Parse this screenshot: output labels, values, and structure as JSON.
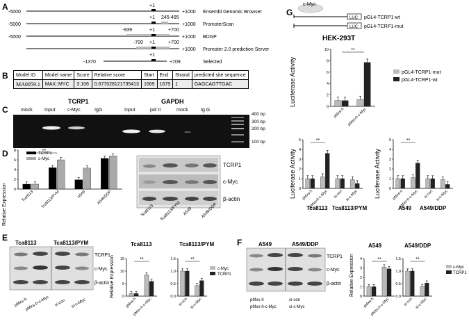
{
  "panels": {
    "A": "A",
    "B": "B",
    "C": "C",
    "D": "D",
    "E": "E",
    "F": "F",
    "G": "G"
  },
  "panelA": {
    "tracks": [
      {
        "left": "-5000",
        "right": "+1000",
        "name": "Ensembl Genomic Browser",
        "mid": [
          "+1"
        ]
      },
      {
        "left": "-5000",
        "right": "+1000",
        "name": "PromoterScan",
        "mid": [
          "+1",
          "245-495"
        ]
      },
      {
        "left": "-5000",
        "right": "+1000",
        "name": "BDGP",
        "mid": [
          "-939",
          "+1",
          "+700"
        ]
      },
      {
        "left": "",
        "right": "+1000",
        "name": "Promoter 2.0 prediction Server",
        "mid": [
          "-700",
          "+1",
          "+700"
        ]
      },
      {
        "left": "-1370",
        "right": "+709",
        "name": "Selected",
        "mid": [
          "+1"
        ]
      }
    ]
  },
  "panelB": {
    "headers": [
      "Model ID",
      "Model name",
      "Score",
      "Relative score",
      "Start",
      "End",
      "Strand",
      "predicted site sequence"
    ],
    "row": [
      "MA0059.1",
      "MAX::MYC",
      "3.106",
      "0.677028121735413",
      "1669",
      "1679",
      "1",
      "GAGCAGTTGAC"
    ]
  },
  "panelC": {
    "title_left": "TCRP1",
    "title_right": "GAPDH",
    "lanes_left": [
      "mock",
      "Input",
      "c-Myc",
      "IgG"
    ],
    "lanes_right": [
      "Input",
      "pol II",
      "mock",
      "Ig G"
    ],
    "ladder": [
      "400 bp",
      "300 bp",
      "200 bp",
      "100 bp"
    ]
  },
  "panelD": {
    "legend": [
      "TCRP1",
      "c-Myc"
    ],
    "ylabel": "Relative Expression",
    "yticks": [
      "0",
      "2",
      "4",
      "6",
      "8"
    ],
    "blot_rows": [
      "TCRP1",
      "c-Myc",
      "β-actin"
    ],
    "blot_lanes": [
      "Tca8113",
      "Tca8113/PYM",
      "A549",
      "A549/DDP"
    ],
    "sig": "**"
  },
  "panelE": {
    "headers": [
      "Tca8113",
      "Tca8113/PYM"
    ],
    "blot_rows": [
      "TCRP1",
      "c-Myc",
      "β-actin"
    ],
    "lanes": [
      "pMxs-h",
      "pMxs-h-c-Myc",
      "si-con",
      "si-c-Myc"
    ],
    "chart1_title": "Tca8113",
    "chart2_title": "Tca8113/PYM",
    "ylabel": "Relative Expression",
    "legend": [
      "c-Myc",
      "TCRP1"
    ],
    "yticks1": [
      "0",
      "5",
      "10",
      "15"
    ],
    "yticks2": [
      "0.0",
      "0.5",
      "1.0",
      "1.5"
    ],
    "sig": "**"
  },
  "panelF": {
    "headers": [
      "A549",
      "A549/DDP"
    ],
    "blot_rows": [
      "TCRP1",
      "c-Myc",
      "β-actin"
    ],
    "lanes": [
      "pMxs-h",
      "pMxs-h-c-Myc",
      "si-con",
      "si-c-Myc"
    ],
    "chart1_title": "A549",
    "chart2_title": "A549/DDP",
    "ylabel": "Relative Expression",
    "legend": [
      "c-Myc",
      "TCRP1"
    ],
    "yticks1": [
      "0",
      "1",
      "2",
      "3",
      "4"
    ],
    "yticks2": [
      "0.0",
      "0.5",
      "1.0",
      "1.5"
    ],
    "sig": "**"
  },
  "panelG": {
    "construct_cmyc": "c-Myc",
    "construct_wt": "pGL4-TCRP1-wt",
    "construct_mut": "pGL4-TCRP1-mut",
    "luc": "LUC",
    "title": "HEK-293T",
    "ylabel": "Luciferase Activity",
    "yticks": [
      "0",
      "2",
      "4",
      "6",
      "8",
      "10"
    ],
    "legend": [
      "pGL4-TCRP1-mut",
      "pGL4-TCRP1-wt"
    ],
    "xcats": [
      "pMxs-h",
      "pMxs-h-c-Myc"
    ],
    "lower_left_cats": [
      "pMxs-h",
      "pMxs-h-c-Myc",
      "si-con",
      "si-c-Myc"
    ],
    "lower_left_groups": [
      "Tca8113",
      "Tca8113/PYM"
    ],
    "lower_right_groups": [
      "A549",
      "A549/DDP"
    ],
    "lower_yticks": [
      "0",
      "1",
      "2",
      "3",
      "4",
      "5"
    ],
    "sig": "**"
  },
  "chart_data": [
    {
      "type": "bar",
      "id": "D",
      "categories": [
        "Tca8113",
        "Tca8113/PYM",
        "A549",
        "A549/DDP"
      ],
      "series": [
        {
          "name": "TCRP1",
          "values": [
            1.0,
            4.4,
            1.9,
            6.3
          ]
        },
        {
          "name": "c-Myc",
          "values": [
            1.0,
            6.0,
            4.3,
            6.8
          ]
        }
      ],
      "ylabel": "Relative Expression",
      "ylim": [
        0,
        8
      ]
    },
    {
      "type": "bar",
      "id": "E1",
      "categories": [
        "pMxs-h",
        "pMxs-h-c-Myc"
      ],
      "series": [
        {
          "name": "c-Myc",
          "values": [
            1.0,
            8.5
          ]
        },
        {
          "name": "TCRP1",
          "values": [
            1.0,
            5.9
          ]
        }
      ],
      "title": "Tca8113",
      "ylabel": "Relative Expression",
      "ylim": [
        0,
        15
      ]
    },
    {
      "type": "bar",
      "id": "E2",
      "categories": [
        "si-con",
        "si-c-Myc"
      ],
      "series": [
        {
          "name": "c-Myc",
          "values": [
            1.0,
            0.42
          ]
        },
        {
          "name": "TCRP1",
          "values": [
            1.0,
            0.62
          ]
        }
      ],
      "title": "Tca8113/PYM",
      "ylabel": "Relative Expression",
      "ylim": [
        0,
        1.5
      ]
    },
    {
      "type": "bar",
      "id": "F1",
      "categories": [
        "pMxs-h",
        "pMxs-h-c-Myc"
      ],
      "series": [
        {
          "name": "c-Myc",
          "values": [
            1.0,
            3.1
          ]
        },
        {
          "name": "TCRP1",
          "values": [
            1.0,
            2.9
          ]
        }
      ],
      "title": "A549",
      "ylabel": "Relative Expression",
      "ylim": [
        0,
        4
      ]
    },
    {
      "type": "bar",
      "id": "F2",
      "categories": [
        "si-con",
        "si-c-Myc"
      ],
      "series": [
        {
          "name": "c-Myc",
          "values": [
            1.0,
            0.38
          ]
        },
        {
          "name": "TCRP1",
          "values": [
            1.0,
            0.52
          ]
        }
      ],
      "title": "A549/DDP",
      "ylabel": "Relative Expression",
      "ylim": [
        0,
        1.5
      ]
    },
    {
      "type": "bar",
      "id": "G1",
      "categories": [
        "pMxs-h",
        "pMxs-h-c-Myc"
      ],
      "series": [
        {
          "name": "pGL4-TCRP1-mut",
          "values": [
            1.0,
            1.2
          ]
        },
        {
          "name": "pGL4-TCRP1-wt",
          "values": [
            1.0,
            7.7
          ]
        }
      ],
      "title": "HEK-293T",
      "ylabel": "Luciferase Activity",
      "ylim": [
        0,
        10
      ]
    },
    {
      "type": "bar",
      "id": "G2",
      "categories": [
        "pMxs-h",
        "pMxs-h-c-Myc",
        "si-con",
        "si-c-Myc"
      ],
      "series": [
        {
          "name": "pGL4-TCRP1-mut",
          "values": [
            1.0,
            1.2,
            1.0,
            0.9
          ]
        },
        {
          "name": "pGL4-TCRP1-wt",
          "values": [
            1.0,
            3.6,
            1.0,
            0.5
          ]
        }
      ],
      "ylabel": "Luciferase Activity",
      "ylim": [
        0,
        5
      ]
    },
    {
      "type": "bar",
      "id": "G3",
      "categories": [
        "pMxs-h",
        "pMxs-h-c-Myc",
        "si-con",
        "si-c-Myc"
      ],
      "series": [
        {
          "name": "pGL4-TCRP1-mut",
          "values": [
            1.0,
            1.1,
            1.0,
            0.9
          ]
        },
        {
          "name": "pGL4-TCRP1-wt",
          "values": [
            1.0,
            2.6,
            1.0,
            0.4
          ]
        }
      ],
      "ylabel": "Luciferase Activity",
      "ylim": [
        0,
        5
      ]
    }
  ]
}
